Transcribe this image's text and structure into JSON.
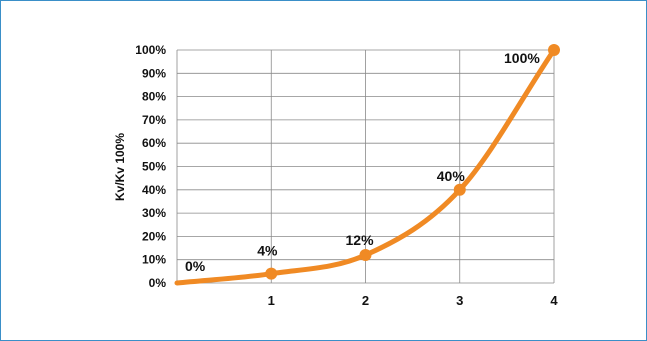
{
  "colors": {
    "curve": "#f08a24",
    "grid": "#8a8a8a",
    "frame": "#3a8fc8"
  },
  "chart_data": {
    "type": "line",
    "title": "",
    "xlabel": "",
    "ylabel": "Kv/Kv 100%",
    "xlim": [
      0,
      4
    ],
    "ylim": [
      0,
      100
    ],
    "x_ticks": [
      1,
      2,
      3,
      4
    ],
    "y_ticks": [
      "0%",
      "10%",
      "20%",
      "30%",
      "40%",
      "50%",
      "60%",
      "70%",
      "80%",
      "90%",
      "100%"
    ],
    "grid": true,
    "series": [
      {
        "x": [
          0,
          1,
          2,
          3,
          4
        ],
        "values": [
          0,
          4,
          12,
          40,
          100
        ],
        "markers": [
          false,
          true,
          true,
          true,
          true
        ],
        "point_labels": [
          "0%",
          "4%",
          "12%",
          "40%",
          "100%"
        ]
      }
    ]
  }
}
